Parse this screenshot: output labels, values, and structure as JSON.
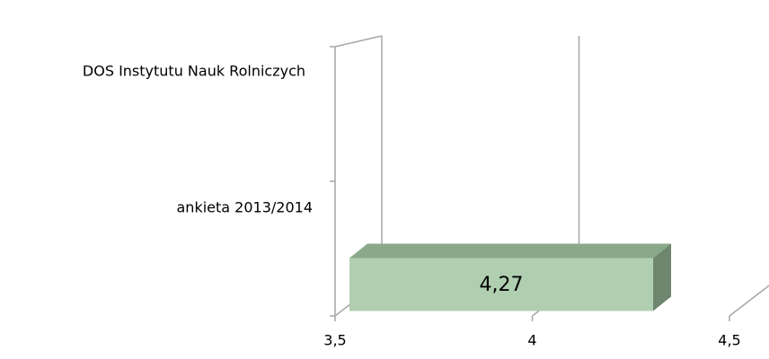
{
  "chart_data": {
    "type": "bar",
    "orientation": "horizontal",
    "categories": [
      "DOS Instytutu Nauk Rolniczych",
      "ankieta 2013/2014"
    ],
    "values": [
      null,
      4.27
    ],
    "value_labels": [
      null,
      "4,27"
    ],
    "color": "#b0cfb0",
    "xlim": [
      3.5,
      4.5
    ],
    "xticks": [
      {
        "value": 3.5,
        "label": "3,5"
      },
      4,
      {
        "value": 4.5,
        "label": "4,5"
      }
    ],
    "grid": true
  }
}
